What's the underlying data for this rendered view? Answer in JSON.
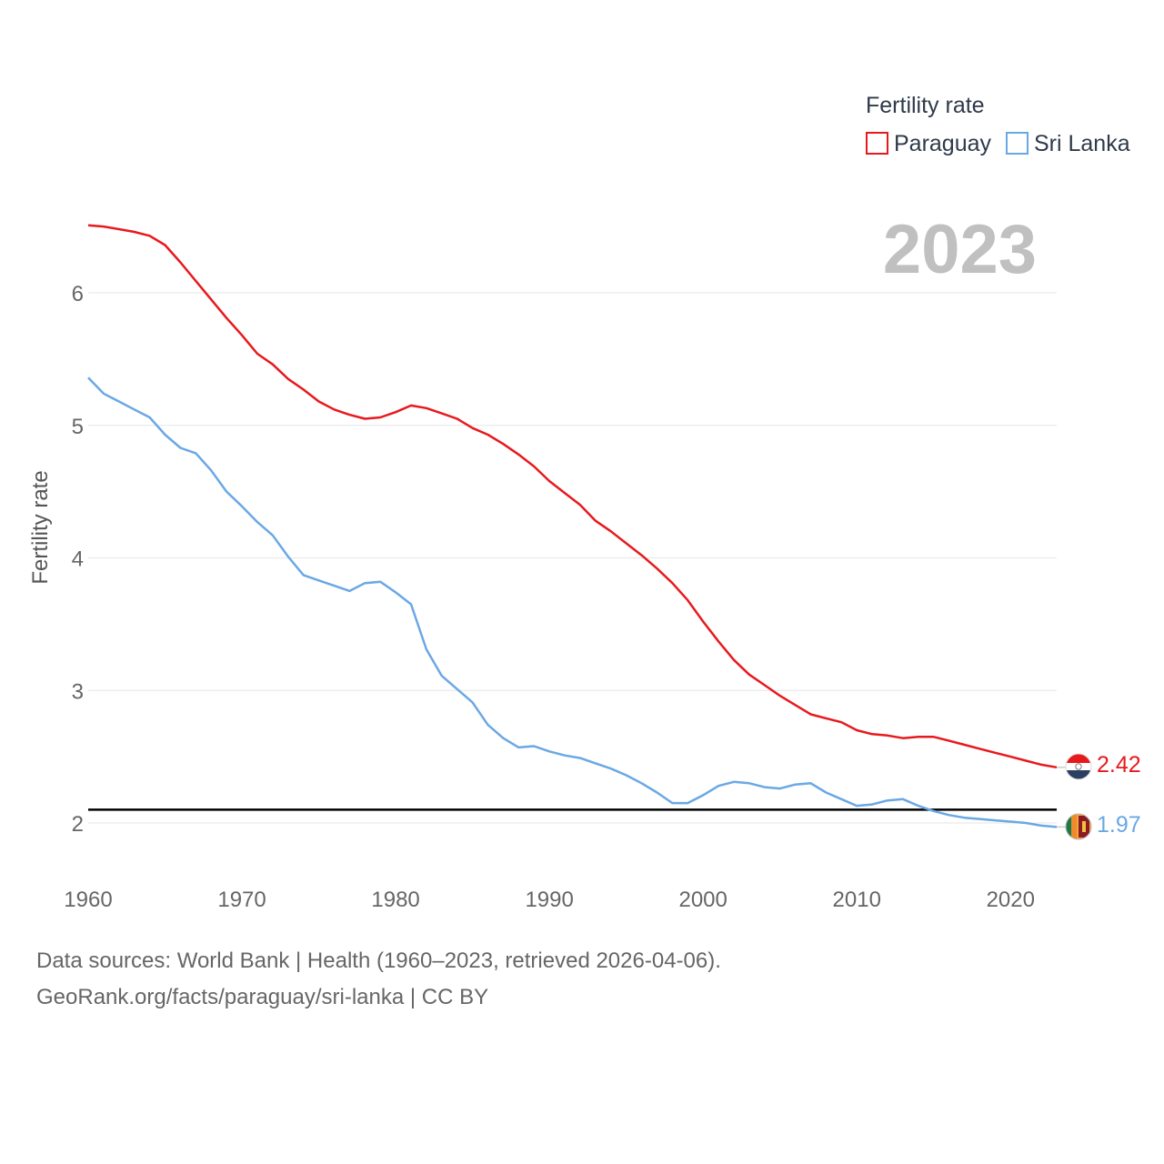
{
  "chart_data": {
    "type": "line",
    "title": "",
    "xlabel": "",
    "ylabel": "Fertility rate",
    "xlim": [
      1960,
      2023
    ],
    "ylim": [
      1.85,
      6.5
    ],
    "x_ticks": [
      "1960",
      "1970",
      "1980",
      "1990",
      "2000",
      "2010",
      "2020"
    ],
    "y_ticks": [
      "2",
      "3",
      "4",
      "5",
      "6"
    ],
    "grid": true,
    "legend_title": "Fertility rate",
    "legend_position": "top-right",
    "year_label": "2023",
    "reference_line": 2.1,
    "x": [
      1960,
      1961,
      1962,
      1963,
      1964,
      1965,
      1966,
      1967,
      1968,
      1969,
      1970,
      1971,
      1972,
      1973,
      1974,
      1975,
      1976,
      1977,
      1978,
      1979,
      1980,
      1981,
      1982,
      1983,
      1984,
      1985,
      1986,
      1987,
      1988,
      1989,
      1990,
      1991,
      1992,
      1993,
      1994,
      1995,
      1996,
      1997,
      1998,
      1999,
      2000,
      2001,
      2002,
      2003,
      2004,
      2005,
      2006,
      2007,
      2008,
      2009,
      2010,
      2011,
      2012,
      2013,
      2014,
      2015,
      2016,
      2017,
      2018,
      2019,
      2020,
      2021,
      2022,
      2023
    ],
    "series": [
      {
        "name": "Paraguay",
        "color": "#e8191d",
        "end_label": "2.42",
        "values": [
          6.51,
          6.5,
          6.48,
          6.46,
          6.43,
          6.36,
          6.23,
          6.09,
          5.95,
          5.81,
          5.68,
          5.54,
          5.46,
          5.35,
          5.27,
          5.18,
          5.12,
          5.08,
          5.05,
          5.06,
          5.1,
          5.15,
          5.13,
          5.09,
          5.05,
          4.98,
          4.93,
          4.86,
          4.78,
          4.69,
          4.58,
          4.49,
          4.4,
          4.28,
          4.2,
          4.11,
          4.02,
          3.92,
          3.81,
          3.68,
          3.52,
          3.37,
          3.23,
          3.12,
          3.04,
          2.96,
          2.89,
          2.82,
          2.79,
          2.76,
          2.7,
          2.67,
          2.66,
          2.64,
          2.65,
          2.65,
          2.62,
          2.59,
          2.56,
          2.53,
          2.5,
          2.47,
          2.44,
          2.42
        ]
      },
      {
        "name": "Sri Lanka",
        "color": "#6aa8e4",
        "end_label": "1.97",
        "values": [
          5.36,
          5.24,
          5.18,
          5.12,
          5.06,
          4.93,
          4.83,
          4.79,
          4.66,
          4.5,
          4.39,
          4.27,
          4.17,
          4.01,
          3.87,
          3.83,
          3.79,
          3.75,
          3.81,
          3.82,
          3.74,
          3.65,
          3.31,
          3.11,
          3.01,
          2.91,
          2.74,
          2.64,
          2.57,
          2.58,
          2.54,
          2.51,
          2.49,
          2.45,
          2.41,
          2.36,
          2.3,
          2.23,
          2.15,
          2.15,
          2.21,
          2.28,
          2.31,
          2.3,
          2.27,
          2.26,
          2.29,
          2.3,
          2.23,
          2.18,
          2.13,
          2.14,
          2.17,
          2.18,
          2.13,
          2.09,
          2.06,
          2.04,
          2.03,
          2.02,
          2.01,
          2.0,
          1.98,
          1.97
        ]
      }
    ]
  },
  "footer": {
    "line1": "Data sources: World Bank | Health (1960–2023, retrieved 2026-04-06).",
    "line2": "GeoRank.org/facts/paraguay/sri-lanka | CC BY"
  }
}
